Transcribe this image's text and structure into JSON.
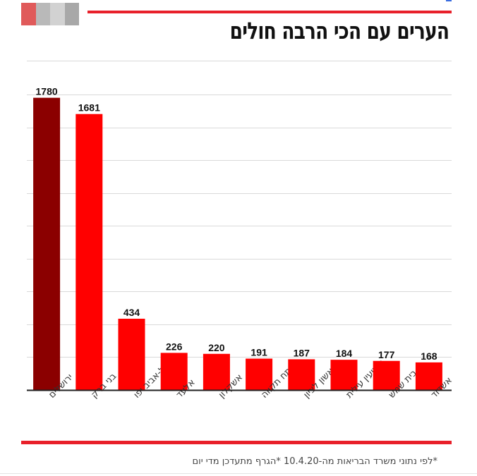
{
  "header": {
    "title": "הערים עם הכי הרבה חולים"
  },
  "footer": {
    "note": "*לפי נתוני משרד הבריאות מה-10.4.20 *הגרף מתעדכן מדי יום"
  },
  "colors": {
    "highlight_bar": "#8b0000",
    "bar": "#ff0000",
    "accent_rule": "#e8202a"
  },
  "chart_data": {
    "type": "bar",
    "title": "הערים עם הכי הרבה חולים",
    "categories": [
      "ירושלים",
      "בני ברק",
      "תל-אביב יפו",
      "אלעד",
      "אשקלון",
      "פתח תקווה",
      "ראשון לציון",
      "מודיעין עילית",
      "בית שמש",
      "אשדוד"
    ],
    "values": [
      1780,
      1681,
      434,
      226,
      220,
      191,
      187,
      184,
      177,
      168
    ],
    "labels": [
      "1780",
      "1681",
      "434",
      "226",
      "220",
      "191",
      "187",
      "184",
      "177",
      "168"
    ],
    "highlight_index": 0,
    "ylim": [
      0,
      1800
    ],
    "grid": true,
    "legend": "none"
  }
}
